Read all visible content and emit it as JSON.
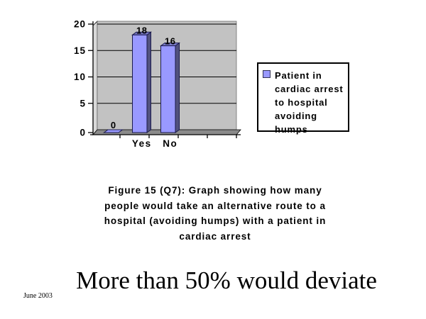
{
  "page": {
    "background": "#FFFFFF"
  },
  "chart_data": {
    "type": "bar",
    "style": "3d-column",
    "title": "",
    "xlabel": "",
    "ylabel": "",
    "categories": [
      "",
      "Yes",
      "No"
    ],
    "values": [
      0,
      18,
      16
    ],
    "data_labels": [
      "0",
      "18",
      "16"
    ],
    "y_ticks": [
      0,
      5,
      10,
      15,
      20
    ],
    "ylim": [
      0,
      20
    ],
    "num_category_slots": 5,
    "grid": true,
    "legend_position": "right",
    "colors": {
      "bar_face": "#9999FF",
      "bar_side": "#52527E",
      "bar_top": "#7B7BC8",
      "bar_outline": "#1A1A4D",
      "back_wall": "#C2C2C2",
      "side_wall": "#D9D9D9",
      "floor": "#8A8A8A",
      "gridline": "#000000",
      "axis": "#000000",
      "label_text": "#000000"
    }
  },
  "legend": {
    "lines": [
      "Patient in",
      "cardiac arrest",
      "to hospital",
      "avoiding",
      "humps"
    ],
    "full_label": "Patient in cardiac arrest to hospital avoiding humps"
  },
  "caption": {
    "lines": [
      "Figure 15 (Q7):  Graph showing how many",
      "people would take an alternative route to a",
      "hospital (avoiding humps) with a patient in",
      "cardiac arrest"
    ]
  },
  "headline": {
    "text": "More than 50% would deviate"
  },
  "footer": {
    "date": "June 2003"
  }
}
